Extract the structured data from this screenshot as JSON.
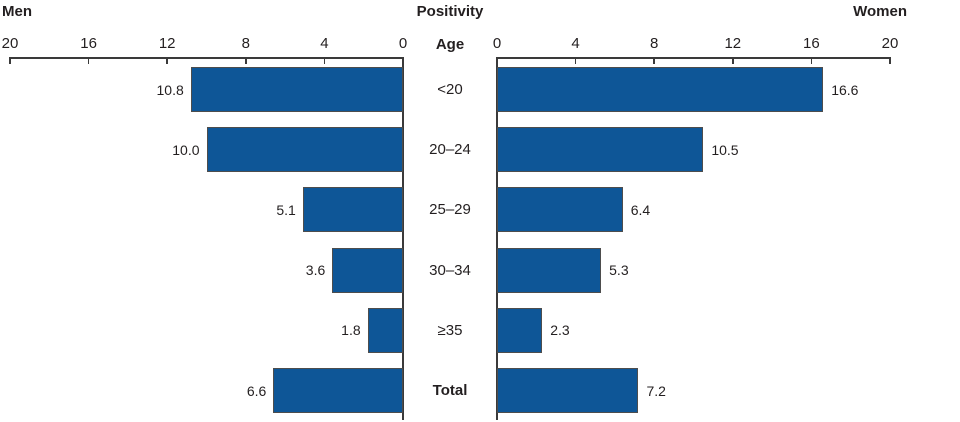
{
  "chart_data": {
    "type": "bar",
    "variant": "bilateral-horizontal",
    "title": "Positivity",
    "center_header": "Age",
    "categories": [
      "<20",
      "20–24",
      "25–29",
      "30–34",
      "≥35",
      "Total"
    ],
    "series": [
      {
        "name": "Men",
        "side": "left",
        "values": [
          10.8,
          10.0,
          5.1,
          3.6,
          1.8,
          6.6
        ],
        "labels": [
          "10.8",
          "10.0",
          "5.1",
          "3.6",
          "1.8",
          "6.6"
        ]
      },
      {
        "name": "Women",
        "side": "right",
        "values": [
          16.6,
          10.5,
          6.4,
          5.3,
          2.3,
          7.2
        ],
        "labels": [
          "16.6",
          "10.5",
          "6.4",
          "5.3",
          "2.3",
          "7.2"
        ]
      }
    ],
    "axis": {
      "ticks": [
        0,
        4,
        8,
        12,
        16,
        20
      ],
      "min": 0,
      "max": 20,
      "left_axis_direction": "reversed",
      "grid": false
    },
    "colors": {
      "bar_fill": "#0e5697",
      "bar_border": "#4d4d4d",
      "axis": "#3a3a3a",
      "text": "#231f20"
    },
    "legend_position": "top-corners"
  }
}
